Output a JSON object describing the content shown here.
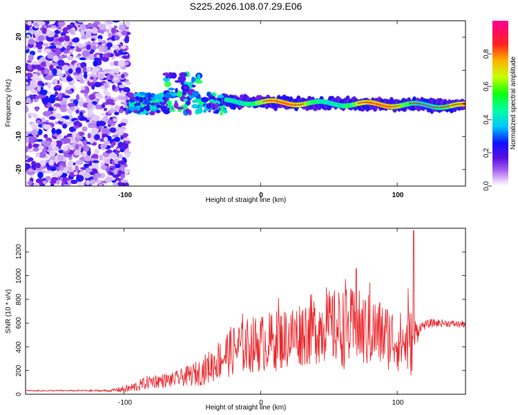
{
  "title": "S225.2026.108.07.29.E06",
  "chart_data": [
    {
      "type": "heatmap",
      "title": "",
      "xlabel": "Height of straight line (km)",
      "ylabel": "Frequency (Hz)",
      "xlim": [
        -172,
        150
      ],
      "ylim": [
        -25,
        25
      ],
      "xticks": [
        "-100",
        "0",
        "100"
      ],
      "yticks": [
        "20",
        "10",
        "0",
        "-10",
        "-20"
      ],
      "colorbar": {
        "label": "Normalized spectral amplitude",
        "range": [
          0,
          1
        ],
        "ticks": [
          "0.0",
          "0.2",
          "0.4",
          "0.6",
          "0.8"
        ],
        "colors": [
          "#ffffff",
          "#c9a3f5",
          "#7a1fe0",
          "#1010ff",
          "#00c8ff",
          "#00ff80",
          "#c8ff00",
          "#ffa500",
          "#ff0000",
          "#ff0080"
        ]
      },
      "regions": [
        {
          "name": "noise",
          "x_range": [
            -172,
            -97
          ],
          "y_range": [
            -25,
            25
          ],
          "amplitude_range": [
            0.05,
            0.35
          ]
        },
        {
          "name": "onset-fragments",
          "x_range": [
            -97,
            -25
          ],
          "y_range": [
            -8,
            10
          ],
          "amplitude_range": [
            0.2,
            0.6
          ]
        },
        {
          "name": "main-band",
          "x_range": [
            -25,
            150
          ],
          "center_y_hz": [
            0.5,
            -0.8
          ],
          "amplitude_range": [
            0.4,
            1.0
          ]
        }
      ]
    },
    {
      "type": "line",
      "title": "",
      "xlabel": "Height of straight line (km)",
      "ylabel": "SNR (10 * v/v)",
      "xlim": [
        -172,
        150
      ],
      "ylim": [
        0,
        1400
      ],
      "xticks": [
        "-100",
        "0",
        "100"
      ],
      "yticks": [
        "0",
        "200",
        "400",
        "600",
        "800",
        "1000",
        "1200"
      ],
      "color": "#e8252a",
      "series": [
        {
          "name": "SNR",
          "x": [
            -172,
            -140,
            -110,
            -95,
            -80,
            -65,
            -55,
            -45,
            -35,
            -25,
            -15,
            -5,
            5,
            15,
            25,
            35,
            45,
            55,
            65,
            75,
            85,
            95,
            105,
            110,
            113,
            117,
            125,
            135,
            145,
            150
          ],
          "center": [
            30,
            30,
            30,
            50,
            110,
            120,
            150,
            180,
            250,
            340,
            400,
            420,
            440,
            460,
            500,
            540,
            560,
            560,
            550,
            540,
            520,
            480,
            430,
            430,
            500,
            570,
            600,
            600,
            590,
            590
          ],
          "amplitude": [
            6,
            6,
            10,
            40,
            60,
            60,
            80,
            110,
            150,
            200,
            230,
            240,
            250,
            260,
            270,
            300,
            300,
            330,
            350,
            330,
            300,
            280,
            250,
            300,
            150,
            40,
            35,
            30,
            30,
            30
          ],
          "spikes": [
            {
              "x": 112,
              "y": 1380
            },
            {
              "x": 70,
              "y": 1060
            },
            {
              "x": 62,
              "y": 970
            },
            {
              "x": 13,
              "y": 810
            },
            {
              "x": 48,
              "y": 900
            },
            {
              "x": 80,
              "y": 940
            },
            {
              "x": -13,
              "y": 680
            },
            {
              "x": 108,
              "y": 890
            }
          ]
        }
      ]
    }
  ]
}
